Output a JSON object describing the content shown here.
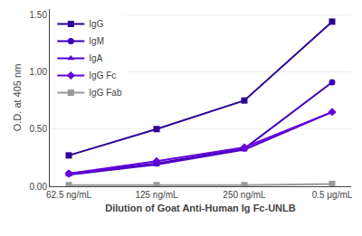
{
  "chart_data": {
    "type": "line",
    "xlabel": "Dilution of Goat Anti-Human Ig Fc-UNLB",
    "ylabel": "O.D. at 405 nm",
    "categories": [
      "62.5 ng/mL",
      "125 ng/mL",
      "250 ng/mL",
      "0.5 μg/mL"
    ],
    "series": [
      {
        "name": "IgG",
        "color": "#2B0096",
        "marker": "square",
        "values": [
          0.27,
          0.5,
          0.75,
          1.44
        ]
      },
      {
        "name": "IgM",
        "color": "#3A00B8",
        "marker": "circle",
        "values": [
          0.11,
          0.2,
          0.33,
          0.91
        ]
      },
      {
        "name": "IgA",
        "color": "#5500CC",
        "marker": "triangle-up",
        "values": [
          0.1,
          0.19,
          0.32,
          0.65
        ]
      },
      {
        "name": "IgG Fc",
        "color": "#6600DD",
        "marker": "diamond",
        "values": [
          0.11,
          0.22,
          0.34,
          0.65
        ]
      },
      {
        "name": "IgG Fab",
        "color": "#999999",
        "marker": "square",
        "values": [
          0.01,
          0.01,
          0.01,
          0.02
        ]
      }
    ],
    "ylim": [
      0.0,
      1.55
    ],
    "yticks": [
      {
        "value": 0.0,
        "label": "0.00"
      },
      {
        "value": 0.5,
        "label": "0.50"
      },
      {
        "value": 1.0,
        "label": "1.00"
      },
      {
        "value": 1.5,
        "label": "1.50"
      }
    ],
    "grid": true,
    "legend": "upper left"
  }
}
